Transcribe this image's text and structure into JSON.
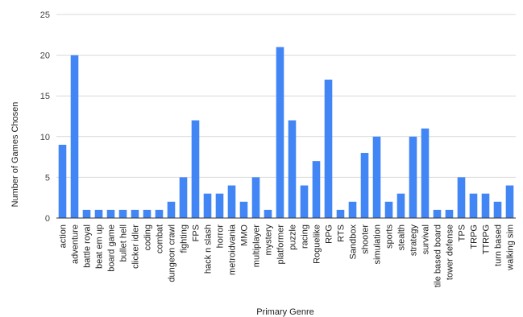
{
  "chart_data": {
    "type": "bar",
    "title": "",
    "xlabel": "Primary Genre",
    "ylabel": "Number of Games Chosen",
    "ylim": [
      0,
      25
    ],
    "yticks": [
      0,
      5,
      10,
      15,
      20,
      25
    ],
    "grid": true,
    "color": "#4285f4",
    "categories": [
      "action",
      "adventure",
      "battle royal",
      "beat em up",
      "board game",
      "bullet hell",
      "clicker idler",
      "coding",
      "combat",
      "dungeon crawl",
      "fighting",
      "FPS",
      "hack n slash",
      "horror",
      "metroidvania",
      "MMO",
      "multiplayer",
      "mystery",
      "platformer",
      "puzzle",
      "racing",
      "Roguelike",
      "RPG",
      "RTS",
      "Sandbox",
      "shooter",
      "simulation",
      "sports",
      "stealth",
      "strategy",
      "survival",
      "tile based board",
      "tower defense",
      "TPS",
      "TRPG",
      "TTRPG",
      "turn based",
      "walking sim"
    ],
    "values": [
      9,
      20,
      1,
      1,
      1,
      1,
      1,
      1,
      1,
      2,
      5,
      12,
      3,
      3,
      4,
      2,
      5,
      1,
      21,
      12,
      4,
      7,
      17,
      1,
      2,
      8,
      10,
      2,
      3,
      10,
      11,
      1,
      1,
      5,
      3,
      3,
      2,
      4
    ]
  }
}
